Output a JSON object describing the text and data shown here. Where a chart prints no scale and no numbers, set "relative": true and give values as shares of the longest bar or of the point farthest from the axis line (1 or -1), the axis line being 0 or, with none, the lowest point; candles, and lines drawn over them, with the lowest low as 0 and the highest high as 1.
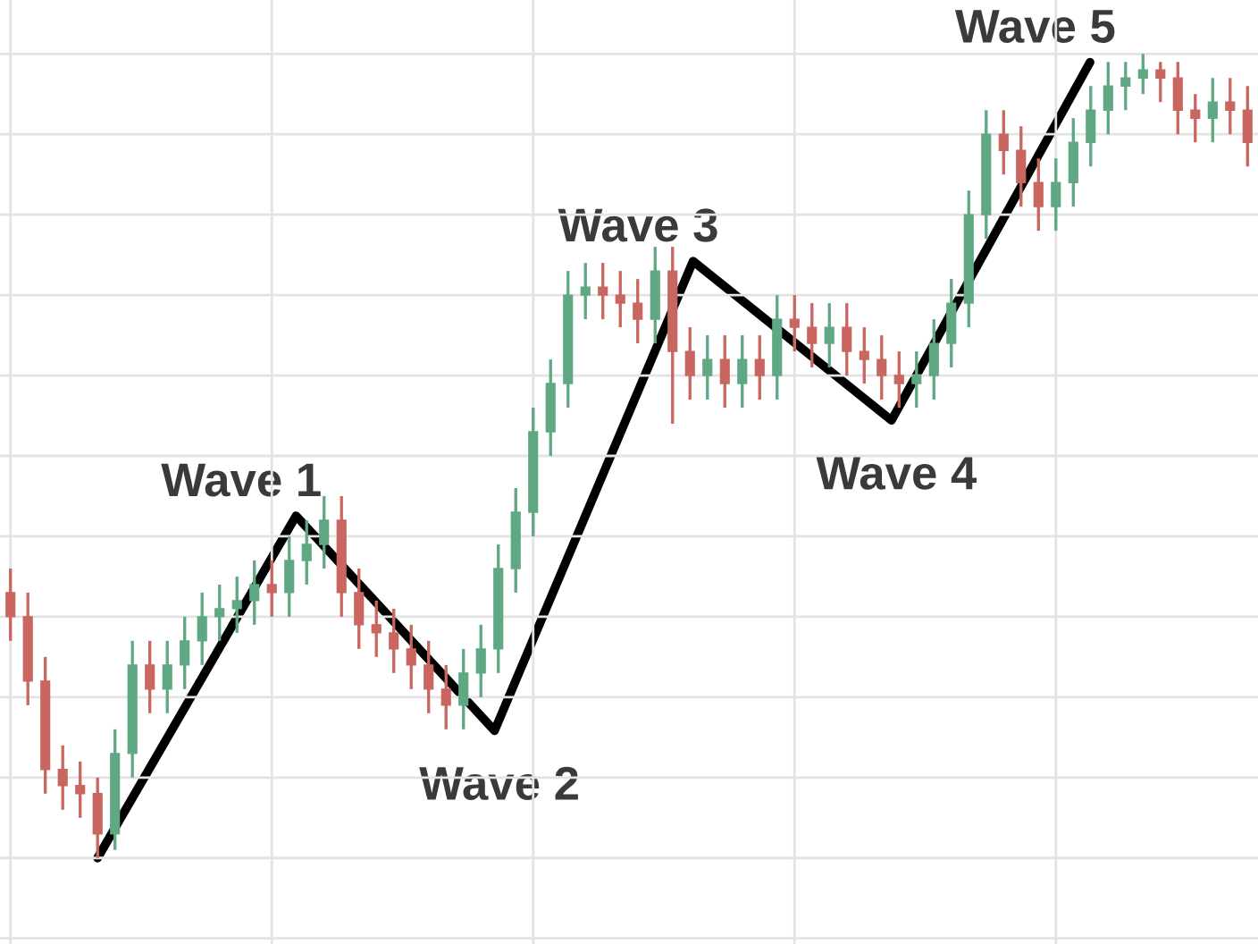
{
  "chart_data": [
    {
      "type": "candlestick",
      "relative": true,
      "grid": true,
      "categories": [
        null,
        null,
        null,
        null,
        null,
        null,
        null,
        null,
        null,
        null,
        null,
        null,
        null,
        null,
        null,
        null,
        null,
        null,
        null,
        null,
        null,
        null,
        null,
        null,
        null,
        null,
        null,
        null,
        null,
        null,
        null,
        null,
        null,
        null,
        null,
        null,
        null,
        null,
        null,
        null,
        null,
        null,
        null,
        null,
        null,
        null,
        null,
        null,
        null,
        null,
        null,
        null,
        null,
        null,
        null,
        null,
        null,
        null,
        null,
        null,
        null,
        null,
        null,
        null,
        null,
        null,
        null,
        null,
        null,
        null,
        null,
        null
      ],
      "ohlc": [
        [
          0.33,
          0.36,
          0.27,
          0.3
        ],
        [
          0.3,
          0.33,
          0.19,
          0.22
        ],
        [
          0.22,
          0.25,
          0.08,
          0.11
        ],
        [
          0.11,
          0.14,
          0.06,
          0.09
        ],
        [
          0.09,
          0.12,
          0.05,
          0.08
        ],
        [
          0.08,
          0.1,
          0,
          0.03
        ],
        [
          0.03,
          0.16,
          0.01,
          0.13
        ],
        [
          0.13,
          0.27,
          0.1,
          0.24
        ],
        [
          0.24,
          0.27,
          0.18,
          0.21
        ],
        [
          0.21,
          0.27,
          0.18,
          0.24
        ],
        [
          0.24,
          0.3,
          0.21,
          0.27
        ],
        [
          0.27,
          0.33,
          0.24,
          0.3
        ],
        [
          0.3,
          0.34,
          0.27,
          0.31
        ],
        [
          0.31,
          0.35,
          0.28,
          0.32
        ],
        [
          0.32,
          0.37,
          0.29,
          0.34
        ],
        [
          0.34,
          0.37,
          0.3,
          0.33
        ],
        [
          0.33,
          0.4,
          0.3,
          0.37
        ],
        [
          0.37,
          0.42,
          0.34,
          0.39
        ],
        [
          0.39,
          0.45,
          0.36,
          0.42
        ],
        [
          0.42,
          0.45,
          0.3,
          0.33
        ],
        [
          0.33,
          0.36,
          0.26,
          0.29
        ],
        [
          0.29,
          0.32,
          0.25,
          0.28
        ],
        [
          0.28,
          0.31,
          0.23,
          0.26
        ],
        [
          0.26,
          0.29,
          0.21,
          0.24
        ],
        [
          0.24,
          0.27,
          0.18,
          0.21
        ],
        [
          0.21,
          0.24,
          0.16,
          0.19
        ],
        [
          0.19,
          0.26,
          0.16,
          0.23
        ],
        [
          0.23,
          0.29,
          0.2,
          0.26
        ],
        [
          0.26,
          0.39,
          0.23,
          0.36
        ],
        [
          0.36,
          0.46,
          0.33,
          0.43
        ],
        [
          0.43,
          0.56,
          0.4,
          0.53
        ],
        [
          0.53,
          0.62,
          0.5,
          0.59
        ],
        [
          0.59,
          0.73,
          0.56,
          0.7
        ],
        [
          0.7,
          0.74,
          0.67,
          0.71
        ],
        [
          0.71,
          0.74,
          0.67,
          0.7
        ],
        [
          0.7,
          0.73,
          0.66,
          0.69
        ],
        [
          0.69,
          0.72,
          0.64,
          0.67
        ],
        [
          0.67,
          0.76,
          0.64,
          0.73
        ],
        [
          0.73,
          0.76,
          0.54,
          0.63
        ],
        [
          0.63,
          0.66,
          0.57,
          0.6
        ],
        [
          0.6,
          0.65,
          0.57,
          0.62
        ],
        [
          0.62,
          0.65,
          0.56,
          0.59
        ],
        [
          0.59,
          0.65,
          0.56,
          0.62
        ],
        [
          0.62,
          0.65,
          0.57,
          0.6
        ],
        [
          0.6,
          0.7,
          0.57,
          0.67
        ],
        [
          0.67,
          0.7,
          0.63,
          0.66
        ],
        [
          0.66,
          0.69,
          0.61,
          0.64
        ],
        [
          0.64,
          0.69,
          0.61,
          0.66
        ],
        [
          0.66,
          0.69,
          0.6,
          0.63
        ],
        [
          0.63,
          0.66,
          0.59,
          0.62
        ],
        [
          0.62,
          0.65,
          0.57,
          0.6
        ],
        [
          0.6,
          0.63,
          0.56,
          0.59
        ],
        [
          0.59,
          0.63,
          0.56,
          0.6
        ],
        [
          0.6,
          0.67,
          0.57,
          0.64
        ],
        [
          0.64,
          0.72,
          0.61,
          0.69
        ],
        [
          0.69,
          0.83,
          0.66,
          0.8
        ],
        [
          0.8,
          0.93,
          0.77,
          0.9
        ],
        [
          0.9,
          0.93,
          0.85,
          0.88
        ],
        [
          0.88,
          0.91,
          0.81,
          0.84
        ],
        [
          0.84,
          0.87,
          0.78,
          0.81
        ],
        [
          0.81,
          0.87,
          0.78,
          0.84
        ],
        [
          0.84,
          0.92,
          0.81,
          0.89
        ],
        [
          0.89,
          0.96,
          0.86,
          0.93
        ],
        [
          0.93,
          0.99,
          0.9,
          0.96
        ],
        [
          0.96,
          0.99,
          0.93,
          0.97
        ],
        [
          0.97,
          1,
          0.95,
          0.98
        ],
        [
          0.98,
          0.99,
          0.94,
          0.97
        ],
        [
          0.97,
          0.99,
          0.9,
          0.93
        ],
        [
          0.93,
          0.95,
          0.89,
          0.92
        ],
        [
          0.92,
          0.97,
          0.89,
          0.94
        ],
        [
          0.94,
          0.97,
          0.9,
          0.93
        ],
        [
          0.93,
          0.96,
          0.86,
          0.89
        ]
      ],
      "colors": [
        "#c8665f",
        "#c8665f",
        "#c8665f",
        "#c8665f",
        "#c8665f",
        "#c8665f",
        "#5fa883",
        "#5fa883",
        "#c8665f",
        "#5fa883",
        "#5fa883",
        "#5fa883",
        "#5fa883",
        "#5fa883",
        "#5fa883",
        "#c8665f",
        "#5fa883",
        "#5fa883",
        "#5fa883",
        "#c8665f",
        "#c8665f",
        "#c8665f",
        "#c8665f",
        "#c8665f",
        "#c8665f",
        "#c8665f",
        "#5fa883",
        "#5fa883",
        "#5fa883",
        "#5fa883",
        "#5fa883",
        "#5fa883",
        "#5fa883",
        "#5fa883",
        "#c8665f",
        "#c8665f",
        "#c8665f",
        "#5fa883",
        "#c8665f",
        "#c8665f",
        "#5fa883",
        "#c8665f",
        "#5fa883",
        "#c8665f",
        "#5fa883",
        "#c8665f",
        "#c8665f",
        "#5fa883",
        "#c8665f",
        "#c8665f",
        "#c8665f",
        "#c8665f",
        "#5fa883",
        "#5fa883",
        "#5fa883",
        "#5fa883",
        "#5fa883",
        "#c8665f",
        "#c8665f",
        "#c8665f",
        "#5fa883",
        "#5fa883",
        "#5fa883",
        "#5fa883",
        "#5fa883",
        "#5fa883",
        "#c8665f",
        "#c8665f",
        "#c8665f",
        "#5fa883",
        "#c8665f",
        "#c8665f"
      ],
      "legend": false
    },
    {
      "type": "line",
      "relative": true,
      "categories": [
        null,
        null,
        null,
        null,
        null,
        null
      ],
      "series": [
        {
          "color": "#000000",
          "values": [
            0,
            0.43,
            0.16,
            0.75,
            0.55,
            1
          ]
        }
      ],
      "annotations": [
        "Wave 1",
        "Wave 2",
        "Wave 3",
        "Wave 4",
        "Wave 5"
      ]
    }
  ]
}
